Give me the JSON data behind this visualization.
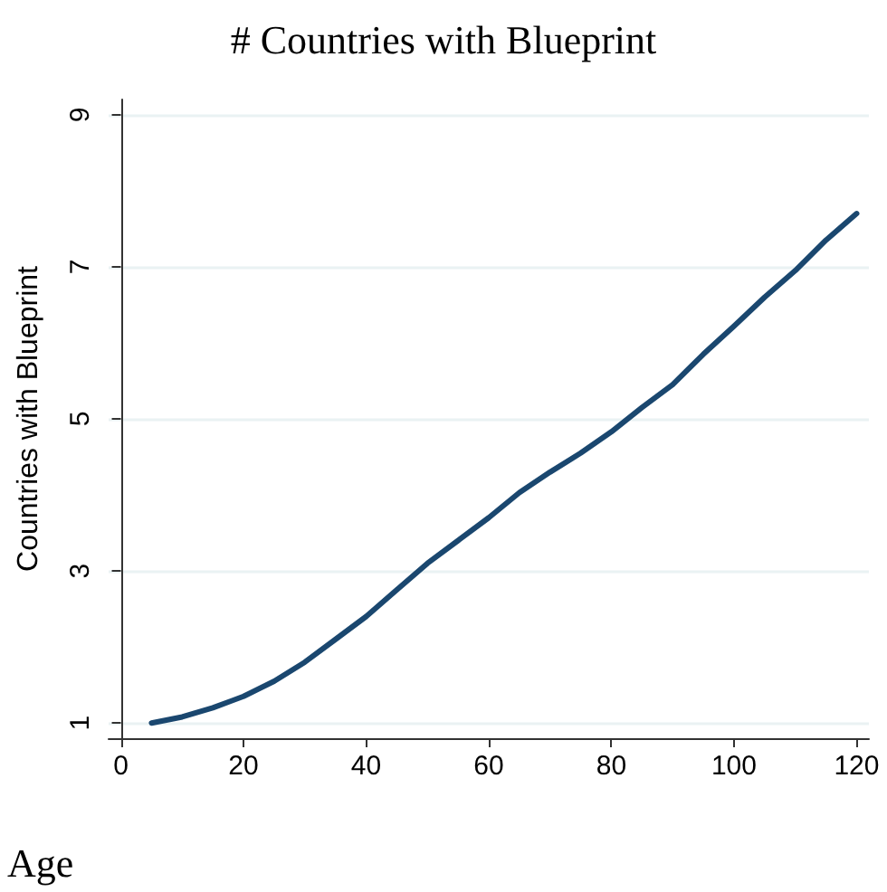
{
  "chart_data": {
    "type": "line",
    "title": "# Countries with Blueprint",
    "xlabel": "Age",
    "ylabel": "Countries with Blueprint",
    "x": [
      5,
      10,
      15,
      20,
      25,
      30,
      35,
      40,
      45,
      50,
      55,
      60,
      65,
      70,
      75,
      80,
      85,
      90,
      95,
      100,
      105,
      110,
      115,
      120
    ],
    "series": [
      {
        "color": "#1a476f",
        "values": [
          1.0,
          1.08,
          1.2,
          1.35,
          1.55,
          1.8,
          2.1,
          2.4,
          2.75,
          3.1,
          3.4,
          3.7,
          4.03,
          4.3,
          4.55,
          4.83,
          5.15,
          5.45,
          5.85,
          6.22,
          6.6,
          6.95,
          7.35,
          7.7
        ]
      }
    ],
    "xlim": [
      -2,
      122
    ],
    "xticks": [
      0,
      20,
      40,
      60,
      80,
      100,
      120
    ],
    "ylim": [
      0.8,
      9.2
    ],
    "yticks": [
      1,
      3,
      5,
      7,
      9
    ],
    "grid": "y",
    "marker": "none",
    "line_style": "solid"
  }
}
